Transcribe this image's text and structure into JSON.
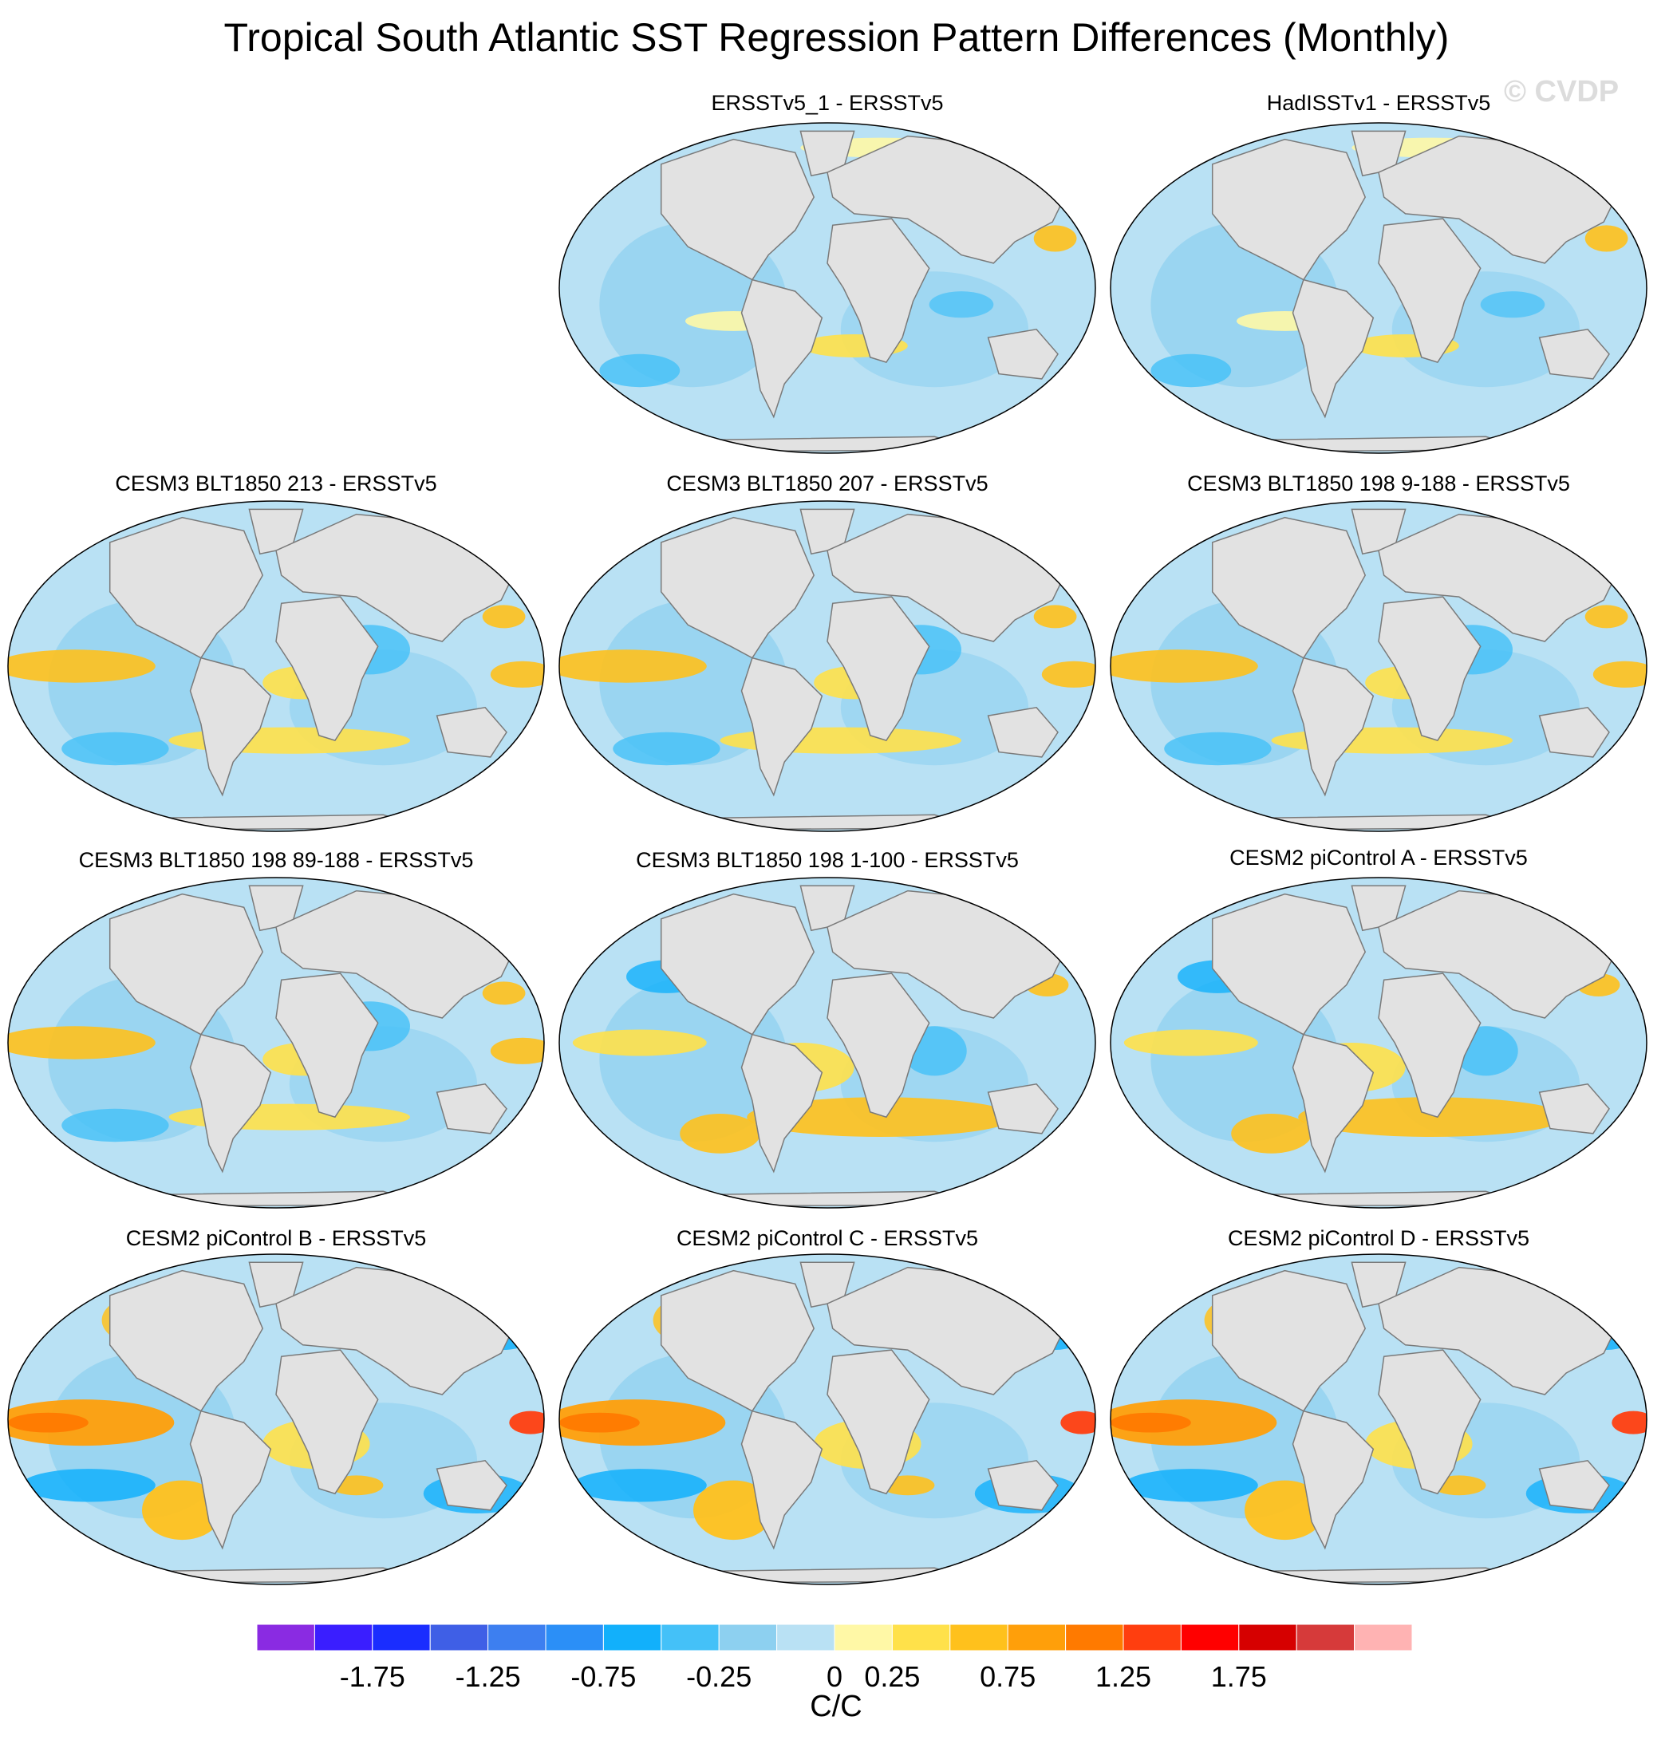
{
  "title": "Tropical South Atlantic SST Regression Pattern Differences (Monthly)",
  "watermark": "© CVDP",
  "panels": [
    {
      "label": "ERSSTv5_1 - ERSSTv5",
      "style": "mixed-weak"
    },
    {
      "label": "HadISSTv1 - ERSSTv5",
      "style": "mixed-weak"
    },
    {
      "label": "CESM3 BLT1850 213 - ERSSTv5",
      "style": "mixed"
    },
    {
      "label": "CESM3 BLT1850 207 - ERSSTv5",
      "style": "mixed"
    },
    {
      "label": "CESM3 BLT1850 198 9-188 - ERSSTv5",
      "style": "mixed"
    },
    {
      "label": "CESM3 BLT1850 198 89-188 - ERSSTv5",
      "style": "mixed"
    },
    {
      "label": "CESM3 BLT1850 198 1-100 - ERSSTv5",
      "style": "mixed-warm"
    },
    {
      "label": "CESM2 piControl A - ERSSTv5",
      "style": "mixed-warm"
    },
    {
      "label": "CESM2 piControl B - ERSSTv5",
      "style": "warm-pacific"
    },
    {
      "label": "CESM2 piControl C - ERSSTv5",
      "style": "warm-pacific"
    },
    {
      "label": "CESM2 piControl D - ERSSTv5",
      "style": "warm-pacific"
    }
  ],
  "colorbar": {
    "colors": [
      "#8a2be2",
      "#3a1eff",
      "#1a2dff",
      "#3f5fe6",
      "#3d7ff0",
      "#2b8ff7",
      "#12b0fb",
      "#44c1f8",
      "#8dd0f0",
      "#b9e1f4",
      "#fff8a6",
      "#ffe14a",
      "#ffc11c",
      "#ff9f0a",
      "#ff7a00",
      "#ff3e0f",
      "#ff0000",
      "#d60000",
      "#d63a3a",
      "#ffb3b3"
    ],
    "labels": [
      "-1.75",
      "-1.25",
      "-0.75",
      "-0.25",
      "0",
      "0.25",
      "0.75",
      "1.25",
      "1.75"
    ],
    "units": "C/C"
  },
  "colors": {
    "land": "#e2e2e2",
    "coast": "#7a7a7a"
  }
}
